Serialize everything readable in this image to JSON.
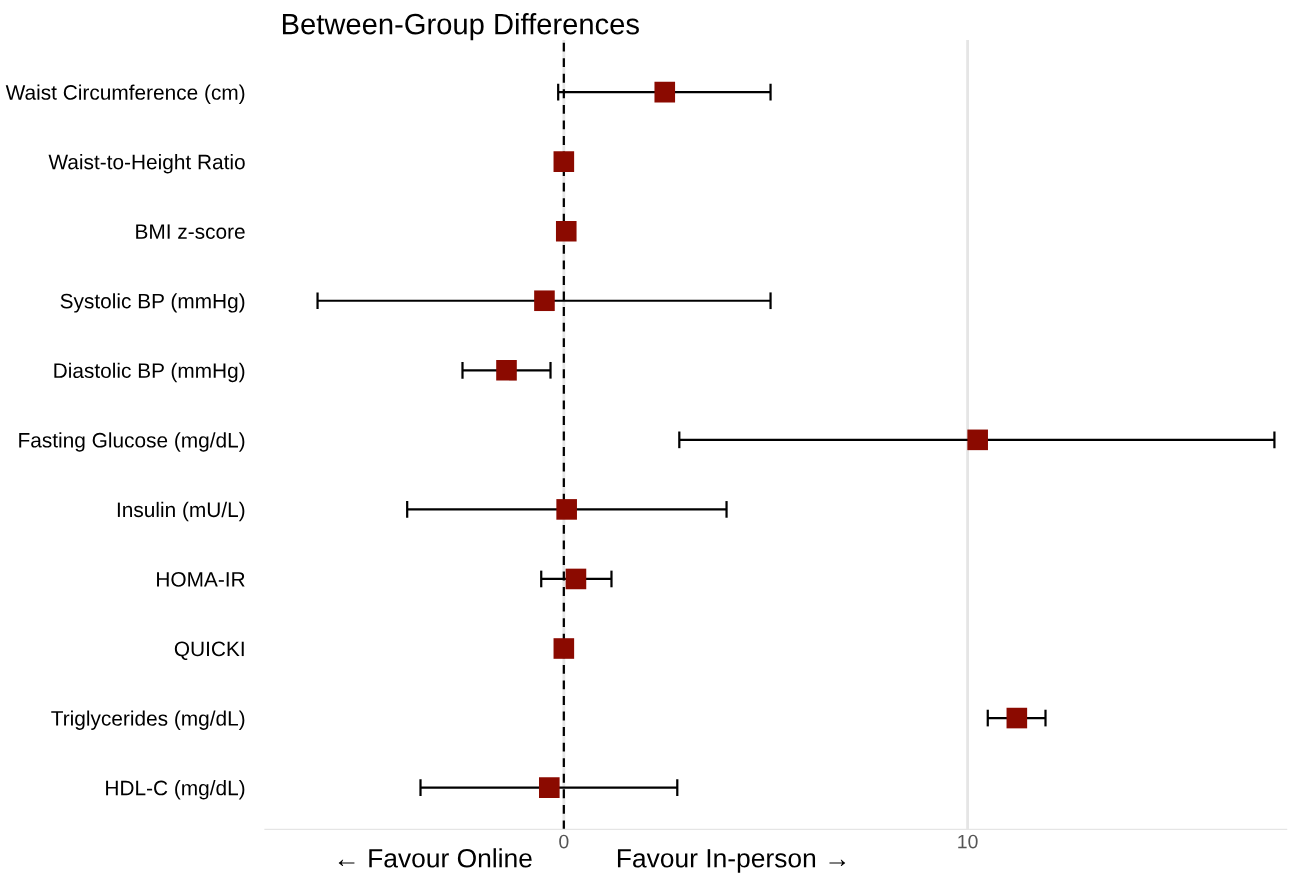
{
  "chart_data": {
    "type": "scatter",
    "orientation": "horizontal",
    "title": "Between-Group Differences",
    "categories": [
      "Waist Circumference (cm)",
      "Waist-to-Height Ratio",
      "BMI z-score",
      "Systolic BP (mmHg)",
      "Diastolic BP (mmHg)",
      "Fasting Glucose (mg/dL)",
      "Insulin (mU/L)",
      "HOMA-IR",
      "QUICKI",
      "Triglycerides (mg/dL)",
      "HDL-C (mg/dL)"
    ],
    "values": [
      2.5,
      0.0,
      0.06,
      -0.48,
      -1.42,
      10.25,
      0.07,
      0.3,
      0.0,
      11.22,
      -0.36
    ],
    "errors": [
      [
        -0.14,
        5.12
      ],
      null,
      null,
      [
        -6.1,
        5.12
      ],
      [
        -2.51,
        -0.33
      ],
      [
        2.86,
        17.6
      ],
      [
        -3.88,
        4.03
      ],
      [
        -0.56,
        1.18
      ],
      null,
      [
        10.5,
        11.93
      ],
      [
        -3.55,
        2.81
      ]
    ],
    "color": "#8b0a00",
    "marker": "square",
    "xlim": [
      -7.4,
      17.9
    ],
    "xticks": [
      0,
      10
    ],
    "grid": "x",
    "legend": false,
    "ref_lines": [
      {
        "axis": "x",
        "value": 0,
        "color": "#000000",
        "line_style": "dashed"
      }
    ],
    "annotations": [
      "← Favour Online",
      "Favour In-person →"
    ]
  }
}
